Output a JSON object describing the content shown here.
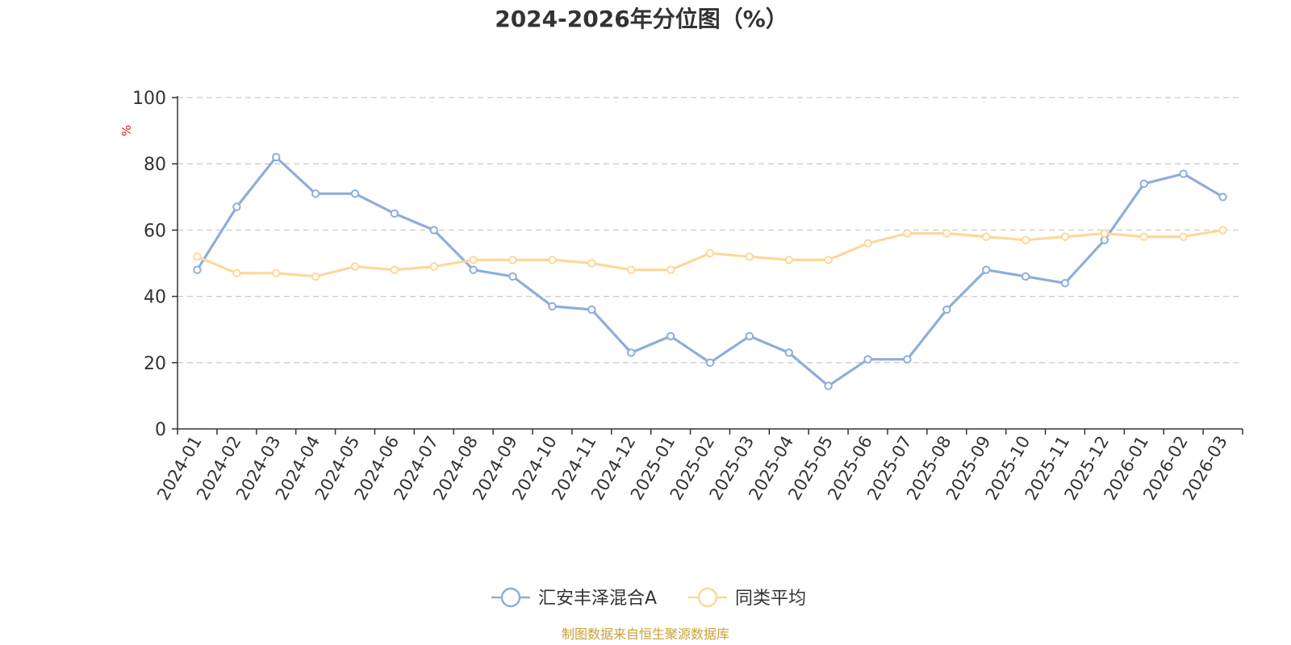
{
  "chart_data": {
    "type": "line",
    "title": "2024-2026年分位图（%）",
    "ylabel": "%",
    "ylim": [
      0,
      100
    ],
    "yticks": [
      "0",
      "20",
      "40",
      "60",
      "80",
      "100"
    ],
    "grid": true,
    "legend_position": "bottom-center",
    "categories": [
      "2024-01",
      "2024-02",
      "2024-03",
      "2024-04",
      "2024-05",
      "2024-06",
      "2024-07",
      "2024-08",
      "2024-09",
      "2024-10",
      "2024-11",
      "2024-12",
      "2025-01",
      "2025-02",
      "2025-03",
      "2025-04",
      "2025-05",
      "2025-06",
      "2025-07",
      "2025-08",
      "2025-09",
      "2025-10",
      "2025-11",
      "2025-12",
      "2026-01",
      "2026-02",
      "2026-03"
    ],
    "series": [
      {
        "name": "汇安丰泽混合A",
        "color": "#8eaedb",
        "values": [
          48,
          67,
          82,
          71,
          71,
          65,
          60,
          48,
          46,
          37,
          36,
          23,
          28,
          20,
          28,
          23,
          13,
          21,
          21,
          36,
          48,
          46,
          44,
          57,
          74,
          77,
          70
        ]
      },
      {
        "name": "同类平均",
        "color": "#fdd89a",
        "values": [
          52,
          47,
          47,
          46,
          49,
          48,
          49,
          51,
          51,
          51,
          50,
          48,
          48,
          53,
          52,
          51,
          51,
          56,
          59,
          59,
          58,
          57,
          58,
          59,
          58,
          58,
          60
        ]
      }
    ]
  },
  "source": "制图数据来自恒生聚源数据库",
  "colors": {
    "axis": "#333333",
    "grid": "#cccccc",
    "unit": "#e02020",
    "source": "#c9a13a"
  }
}
